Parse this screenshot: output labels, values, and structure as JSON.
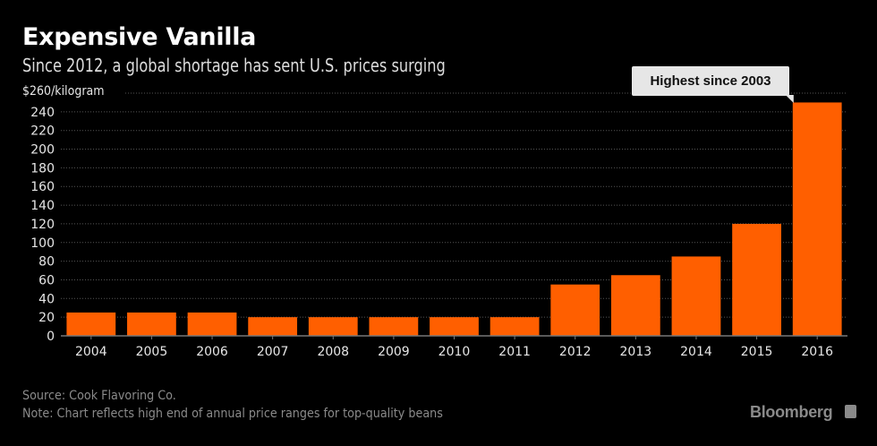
{
  "header": {
    "title": "Expensive Vanilla",
    "subtitle": "Since 2012, a global shortage has sent U.S. prices surging",
    "unit_label": "$260/kilogram"
  },
  "annotation": {
    "text": "Highest since 2003",
    "target_category": "2016"
  },
  "footer": {
    "source": "Source: Cook Flavoring Co.",
    "note": "Note: Chart reflects high end of annual price ranges for top-quality beans",
    "brand": "Bloomberg",
    "brand_icon": "bloomberg-chart-icon"
  },
  "colors": {
    "bar": "#ff5f00",
    "background": "#000000",
    "grid": "#555555",
    "axis": "#777777"
  },
  "chart_data": {
    "type": "bar",
    "title": "Expensive Vanilla",
    "subtitle": "Since 2012, a global shortage has sent U.S. prices surging",
    "xlabel": "",
    "ylabel": "$/kilogram",
    "categories": [
      "2004",
      "2005",
      "2006",
      "2007",
      "2008",
      "2009",
      "2010",
      "2011",
      "2012",
      "2013",
      "2014",
      "2015",
      "2016"
    ],
    "values": [
      25,
      25,
      25,
      20,
      20,
      20,
      20,
      20,
      55,
      65,
      85,
      120,
      250
    ],
    "ylim": [
      0,
      260
    ],
    "yticks": [
      0,
      20,
      40,
      60,
      80,
      100,
      120,
      140,
      160,
      180,
      200,
      220,
      240
    ],
    "top_tick_label": "$260/kilogram",
    "grid": true,
    "legend": "none"
  }
}
